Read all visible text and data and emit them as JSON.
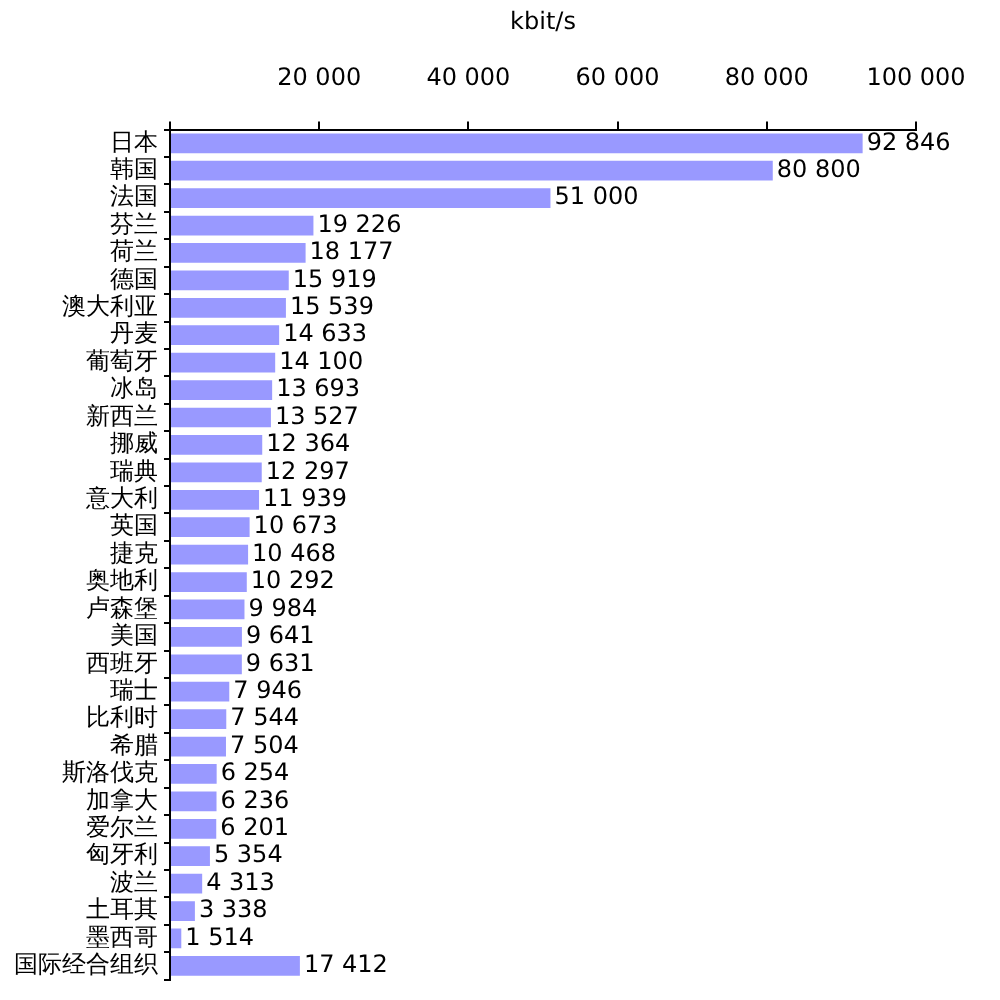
{
  "chart_data": {
    "type": "bar",
    "orientation": "horizontal",
    "xlabel": "kbit/s",
    "categories": [
      "日本",
      "韩国",
      "法国",
      "芬兰",
      "荷兰",
      "德国",
      "澳大利亚",
      "丹麦",
      "葡萄牙",
      "冰岛",
      "新西兰",
      "挪威",
      "瑞典",
      "意大利",
      "英国",
      "捷克",
      "奥地利",
      "卢森堡",
      "美国",
      "西班牙",
      "瑞士",
      "比利时",
      "希腊",
      "斯洛伐克",
      "加拿大",
      "爱尔兰",
      "匈牙利",
      "波兰",
      "土耳其",
      "墨西哥",
      "国际经合组织"
    ],
    "values": [
      92846,
      80800,
      51000,
      19226,
      18177,
      15919,
      15539,
      14633,
      14100,
      13693,
      13527,
      12364,
      12297,
      11939,
      10673,
      10468,
      10292,
      9984,
      9641,
      9631,
      7946,
      7544,
      7504,
      6254,
      6236,
      6201,
      5354,
      4313,
      3338,
      1514,
      17412
    ],
    "value_labels": [
      "92 846",
      "80 800",
      "51 000",
      "19 226",
      "18 177",
      "15 919",
      "15 539",
      "14 633",
      "14 100",
      "13 693",
      "13 527",
      "12 364",
      "12 297",
      "11 939",
      "10 673",
      "10 468",
      "10 292",
      "9 984",
      "9 641",
      "9 631",
      "7 946",
      "7 544",
      "7 504",
      "6 254",
      "6 236",
      "6 201",
      "5 354",
      "4 313",
      "3 338",
      "1 514",
      "17 412"
    ],
    "color": "#9999ff",
    "xlim": [
      0,
      100000
    ],
    "xticks": [
      {
        "value": 0,
        "label": null
      },
      {
        "value": 20000,
        "label": "20 000"
      },
      {
        "value": 40000,
        "label": "40 000"
      },
      {
        "value": 60000,
        "label": "60 000"
      },
      {
        "value": 80000,
        "label": "80 000"
      },
      {
        "value": 100000,
        "label": "100 000"
      }
    ],
    "grid": false,
    "legend": false
  }
}
